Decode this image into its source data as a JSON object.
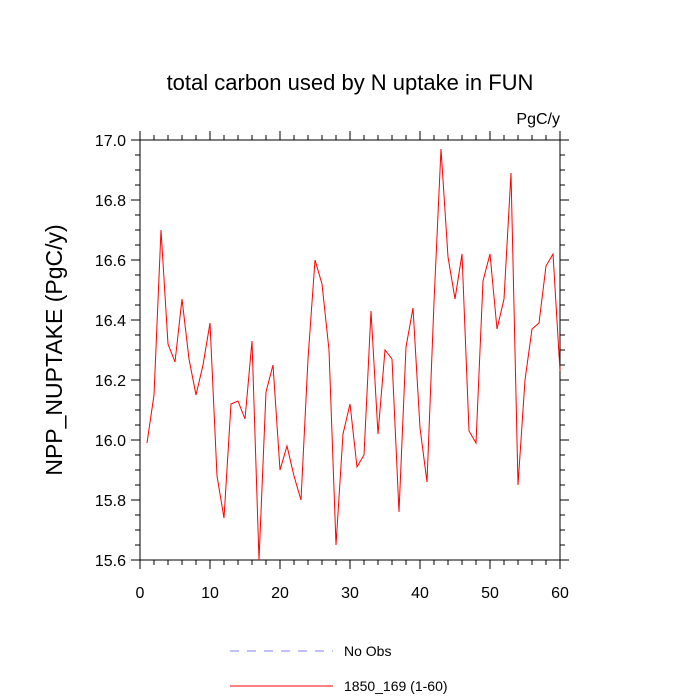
{
  "chart_data": {
    "type": "line",
    "title": "total carbon used by N uptake in FUN",
    "units": "PgC/y",
    "xlabel": "",
    "ylabel": "NPP_NUPTAKE  (PgC/y)",
    "xlim": [
      0,
      60
    ],
    "ylim": [
      15.6,
      17.0
    ],
    "x_ticks": [
      0,
      10,
      20,
      30,
      40,
      50,
      60
    ],
    "x_tick_labels": [
      "0",
      "10",
      "20",
      "30",
      "40",
      "50",
      "60"
    ],
    "y_ticks": [
      15.6,
      15.8,
      16.0,
      16.2,
      16.4,
      16.6,
      16.8,
      17.0
    ],
    "y_tick_labels": [
      "15.6",
      "15.8",
      "16.0",
      "16.2",
      "16.4",
      "16.6",
      "16.8",
      "17.0"
    ],
    "grid": false,
    "legend_position": "bottom",
    "series": [
      {
        "name": "No Obs",
        "color": "#8080ff",
        "style": "dashed",
        "x": [],
        "values": []
      },
      {
        "name": "1850_169 (1-60)",
        "color": "#ff0000",
        "style": "solid",
        "x": [
          1,
          2,
          3,
          4,
          5,
          6,
          7,
          8,
          9,
          10,
          11,
          12,
          13,
          14,
          15,
          16,
          17,
          18,
          19,
          20,
          21,
          22,
          23,
          24,
          25,
          26,
          27,
          28,
          29,
          30,
          31,
          32,
          33,
          34,
          35,
          36,
          37,
          38,
          39,
          40,
          41,
          42,
          43,
          44,
          45,
          46,
          47,
          48,
          49,
          50,
          51,
          52,
          53,
          54,
          55,
          56,
          57,
          58,
          59,
          60
        ],
        "values": [
          15.99,
          16.15,
          16.7,
          16.32,
          16.26,
          16.47,
          16.27,
          16.15,
          16.25,
          16.39,
          15.88,
          15.74,
          16.12,
          16.13,
          16.07,
          16.33,
          15.6,
          16.16,
          16.25,
          15.9,
          15.98,
          15.88,
          15.8,
          16.27,
          16.6,
          16.52,
          16.3,
          15.65,
          16.02,
          16.12,
          15.91,
          15.95,
          16.43,
          16.02,
          16.3,
          16.27,
          15.76,
          16.31,
          16.44,
          16.04,
          15.86,
          16.46,
          16.97,
          16.61,
          16.47,
          16.62,
          16.03,
          15.99,
          16.53,
          16.62,
          16.37,
          16.47,
          16.89,
          15.85,
          16.2,
          16.37,
          16.39,
          16.58,
          16.62,
          16.23
        ]
      }
    ]
  }
}
